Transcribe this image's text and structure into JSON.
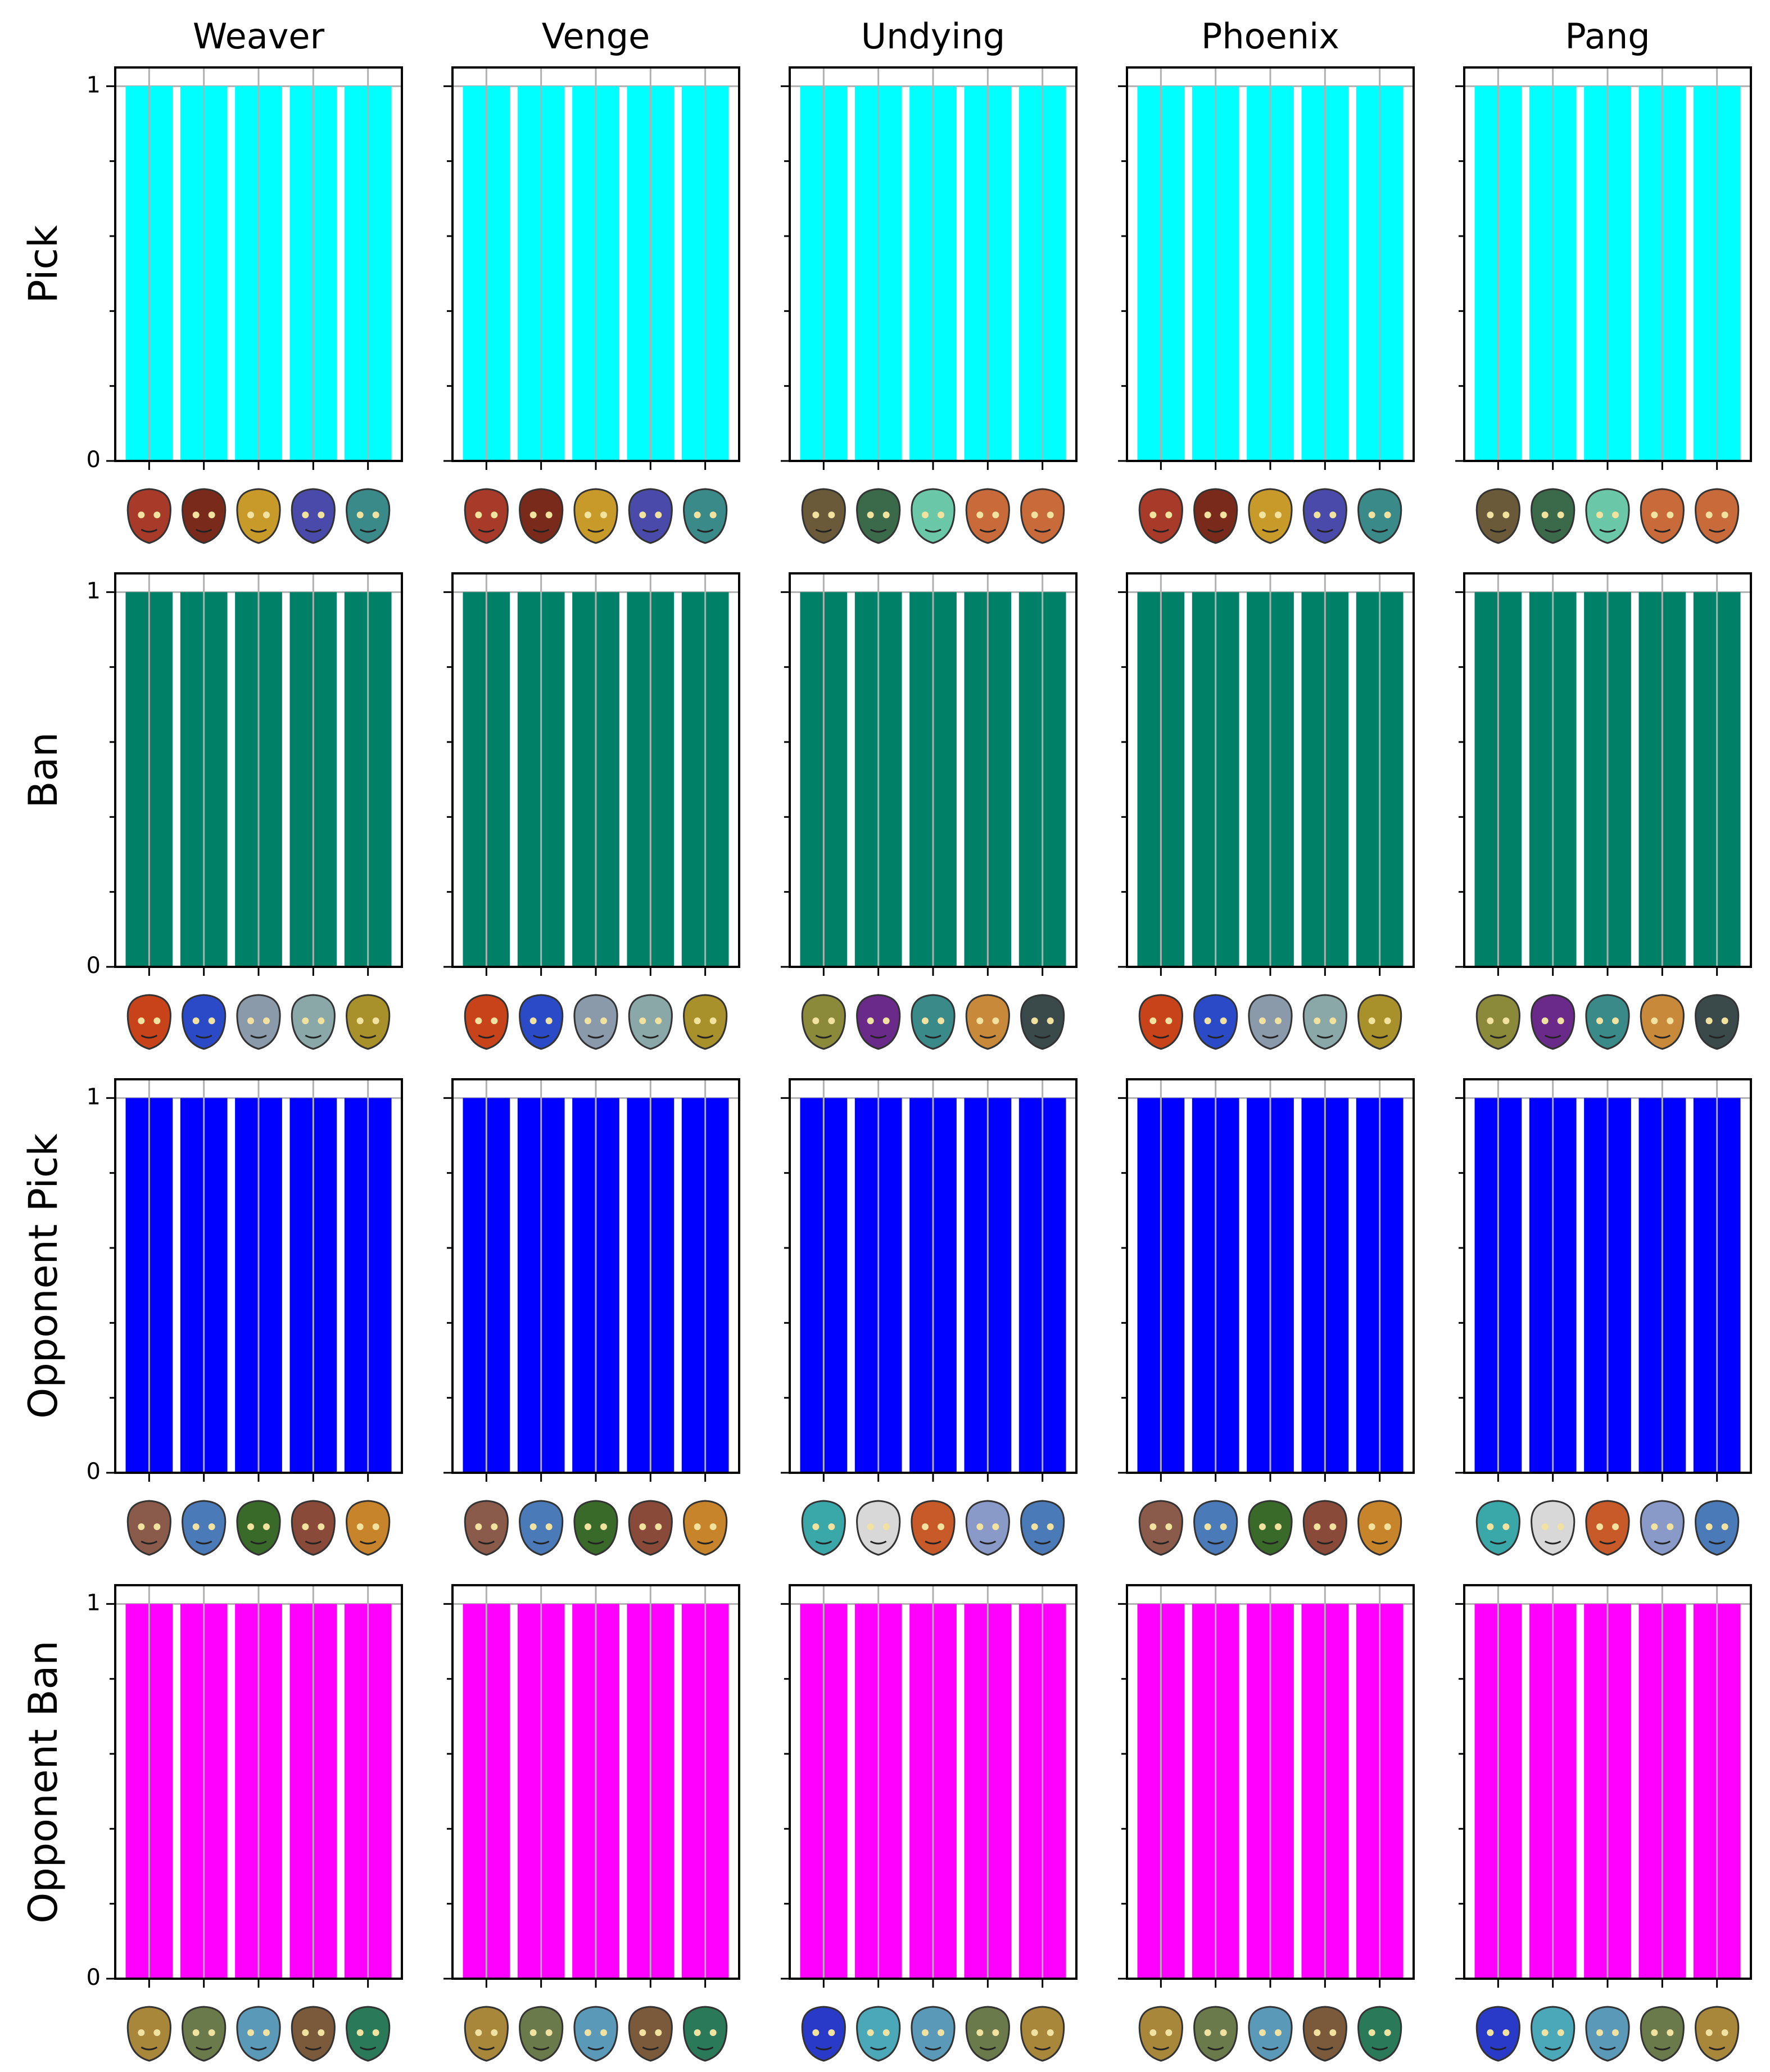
{
  "chart_data": {
    "type": "bar",
    "layout": "grid",
    "columns": [
      "Weaver",
      "Venge",
      "Undying",
      "Phoenix",
      "Pang"
    ],
    "rows": [
      {
        "label": "Pick",
        "color": "#00ffff"
      },
      {
        "label": "Ban",
        "color": "#008066"
      },
      {
        "label": "Opponent Pick",
        "color": "#0000ff"
      },
      {
        "label": "Opponent Ban",
        "color": "#ff00ff"
      }
    ],
    "categories_per_panel": 5,
    "values": [
      1,
      1,
      1,
      1,
      1
    ],
    "ylim": [
      0,
      1.05
    ],
    "yticks": [
      0,
      1
    ],
    "yticklabels": [
      "0",
      "1"
    ],
    "ygrid": true,
    "xgrid": true,
    "xtick_labels_are_icons": true,
    "icon_sets": {
      "A": [
        "#a83a2a",
        "#7a2a1a",
        "#c89a2a",
        "#4a4aaa",
        "#3a8a8a"
      ],
      "B": [
        "#6a5a3a",
        "#3a6a4a",
        "#6ac8a8",
        "#c86a3a",
        "#c86a3a"
      ],
      "C": [
        "#c8421a",
        "#2a4ac8",
        "#8a9aaa",
        "#8aa8a8",
        "#a8902a"
      ],
      "D": [
        "#8a8a3a",
        "#6a2a8a",
        "#3a8a8a",
        "#c88a3a",
        "#3a4a4a"
      ],
      "E": [
        "#8a5a4a",
        "#4a7ab8",
        "#3a6a2a",
        "#8a4a3a",
        "#c8842a"
      ],
      "F": [
        "#3aa8a8",
        "#d8d8d8",
        "#c85a2a",
        "#8a9ac8",
        "#4a7ab8"
      ],
      "G": [
        "#a8863a",
        "#6a7a4a",
        "#5a9ab8",
        "#7a5a3a",
        "#2a7a5a"
      ],
      "H": [
        "#2a3ac8",
        "#4aa8b8",
        "#5a9ab8",
        "#6a7a4a",
        "#a8863a"
      ]
    },
    "icon_grid": [
      [
        "A",
        "A",
        "B",
        "A",
        "B"
      ],
      [
        "C",
        "C",
        "D",
        "C",
        "D"
      ],
      [
        "E",
        "E",
        "F",
        "E",
        "F"
      ],
      [
        "G",
        "G",
        "H",
        "G",
        "H"
      ]
    ]
  }
}
